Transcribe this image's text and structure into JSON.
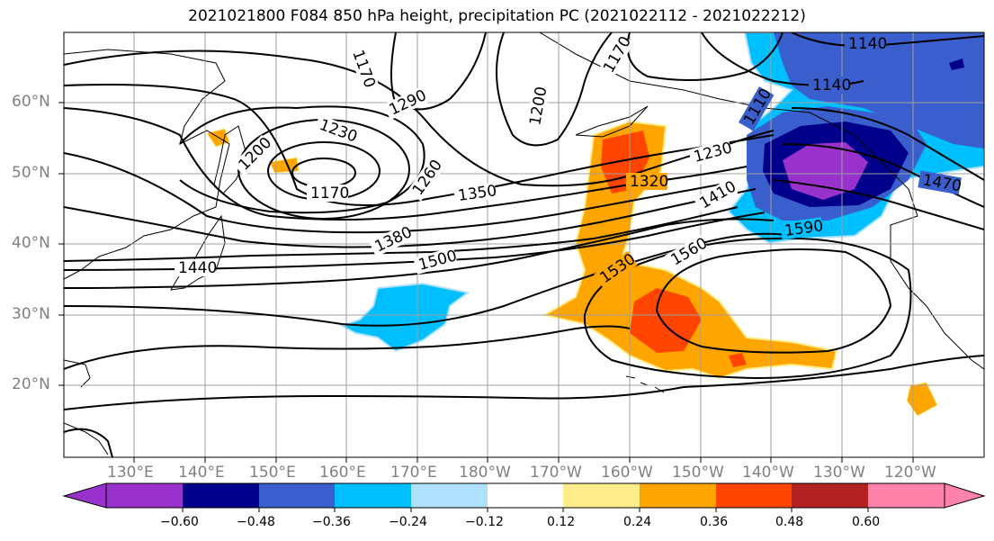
{
  "title": "2021021800 F084 850 hPa height, precipitation PC (2021022112 - 2021022212)",
  "latitudes": [
    "60°N",
    "50°N",
    "40°N",
    "30°N",
    "20°N"
  ],
  "longitudes": [
    "130°E",
    "140°E",
    "150°E",
    "160°E",
    "170°E",
    "180°W",
    "170°W",
    "160°W",
    "150°W",
    "140°W",
    "130°W",
    "120°W"
  ],
  "contour_labels": [
    "1140",
    "1140",
    "1170",
    "1200",
    "1200",
    "1230",
    "1230",
    "1260",
    "1290",
    "1320",
    "1350",
    "1380",
    "1410",
    "1440",
    "1470",
    "1500",
    "1530",
    "1560",
    "1590",
    "1170",
    "1170",
    "1110"
  ],
  "colorbar": {
    "tick_labels": [
      "−0.60",
      "−0.48",
      "−0.36",
      "−0.24",
      "−0.12",
      "0.12",
      "0.24",
      "0.36",
      "0.48",
      "0.60"
    ],
    "colors": [
      "#9932cc",
      "#00008b",
      "#3a5fcd",
      "#00bfff",
      "#b0e2ff",
      "#ffffff",
      "#ffec8b",
      "#ffa500",
      "#ff4500",
      "#b22222",
      "#ff82ab"
    ]
  }
}
